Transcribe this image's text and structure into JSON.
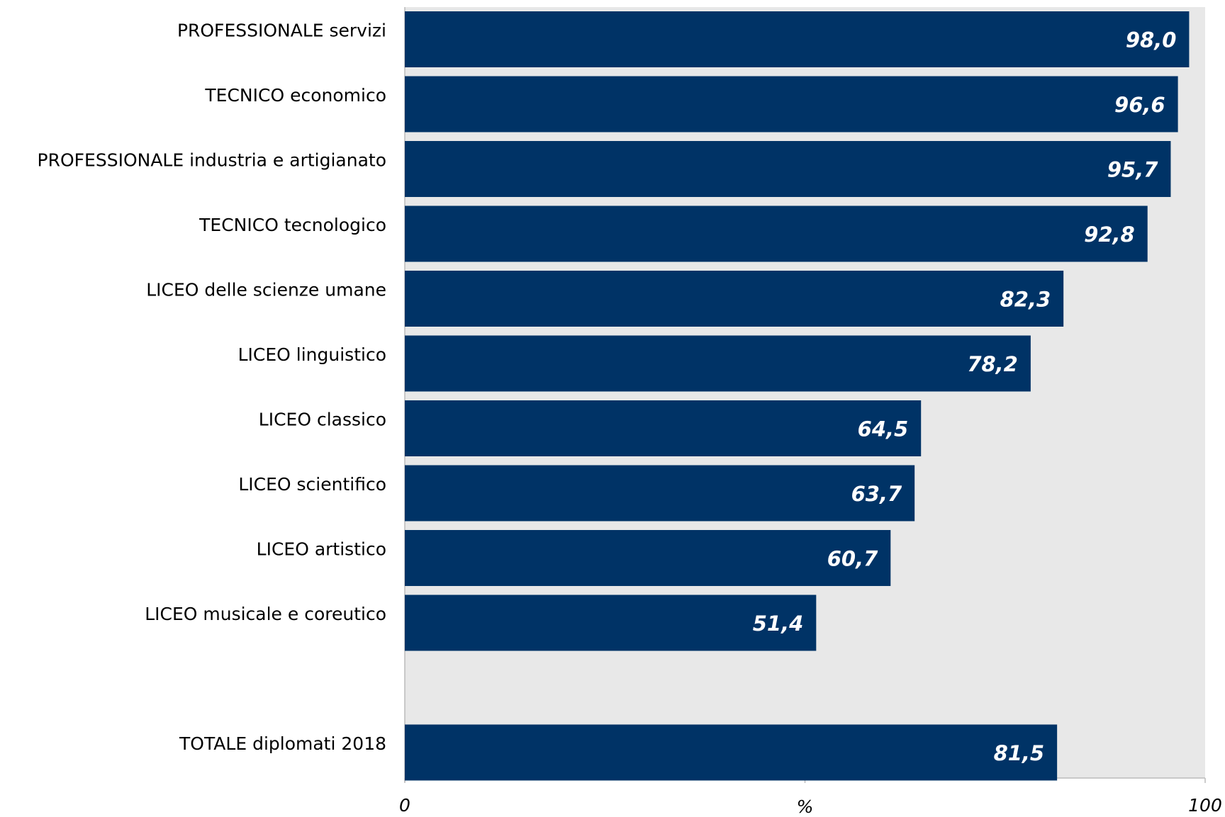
{
  "chart_data": {
    "type": "bar",
    "orientation": "horizontal",
    "categories": [
      "PROFESSIONALE servizi",
      "TECNICO economico",
      "PROFESSIONALE industria e artigianato",
      "TECNICO tecnologico",
      "LICEO delle scienze umane",
      "LICEO linguistico",
      "LICEO classico",
      "LICEO scientifico",
      "LICEO artistico",
      "LICEO musicale e coreutico",
      "",
      "TOTALE diplomati 2018"
    ],
    "values": [
      98.0,
      96.6,
      95.7,
      92.8,
      82.3,
      78.2,
      64.5,
      63.7,
      60.7,
      51.4,
      null,
      81.5
    ],
    "value_labels": [
      "98,0",
      "96,6",
      "95,7",
      "92,8",
      "82,3",
      "78,2",
      "64,5",
      "63,7",
      "60,7",
      "51,4",
      "",
      "81,5"
    ],
    "xlim": [
      0,
      100
    ],
    "x_ticks": [
      "0",
      "100"
    ],
    "xlabel": "%",
    "grid": false,
    "legend": "none",
    "colors": {
      "bar": "#003366",
      "plot_background": "#e8e8e8",
      "value_text": "#ffffff"
    }
  }
}
